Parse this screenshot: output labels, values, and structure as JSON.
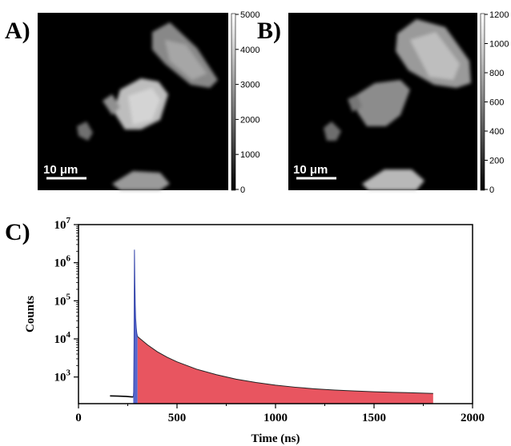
{
  "panels": {
    "a": {
      "label": "A)",
      "scale_bar": "10 μm",
      "colorbar": {
        "min": 0,
        "max": 5000,
        "ticks": [
          "5000",
          "4000",
          "3000",
          "2000",
          "1000",
          "0"
        ]
      }
    },
    "b": {
      "label": "B)",
      "scale_bar": "10 μm",
      "colorbar": {
        "min": 0,
        "max": 1200,
        "ticks": [
          "1200",
          "1000",
          "800",
          "600",
          "400",
          "200",
          "0"
        ]
      }
    },
    "c": {
      "label": "C)"
    }
  },
  "chart_data": {
    "type": "area",
    "title": "",
    "xlabel": "Time (ns)",
    "ylabel": "Counts",
    "xlim": [
      0,
      2000
    ],
    "ylim": [
      200,
      10000000
    ],
    "yscale": "log",
    "x_ticks": [
      "0",
      "500",
      "1000",
      "1500",
      "2000"
    ],
    "y_ticks": [
      {
        "base": "10",
        "exp": "3",
        "value": 1000
      },
      {
        "base": "10",
        "exp": "4",
        "value": 10000
      },
      {
        "base": "10",
        "exp": "5",
        "value": 100000
      },
      {
        "base": "10",
        "exp": "6",
        "value": 1000000
      },
      {
        "base": "10",
        "exp": "7",
        "value": 10000000
      }
    ],
    "grid": false,
    "series": [
      {
        "color": "#000000",
        "x": [
          160,
          200,
          240,
          270,
          278
        ],
        "y": [
          320,
          315,
          310,
          300,
          300
        ]
      },
      {
        "color": "#5566cc",
        "x": [
          278,
          280,
          282,
          284,
          286,
          288,
          290,
          293,
          296,
          300
        ],
        "y": [
          300,
          400,
          8000,
          2200000,
          300000,
          80000,
          35000,
          20000,
          14000,
          11500
        ]
      },
      {
        "color": "#e85560",
        "x": [
          300,
          350,
          400,
          450,
          500,
          600,
          700,
          800,
          900,
          1000,
          1100,
          1200,
          1300,
          1400,
          1500,
          1600,
          1700,
          1800
        ],
        "y": [
          11500,
          7000,
          4600,
          3300,
          2500,
          1600,
          1150,
          880,
          720,
          610,
          540,
          490,
          455,
          430,
          410,
          395,
          385,
          370
        ]
      }
    ]
  }
}
